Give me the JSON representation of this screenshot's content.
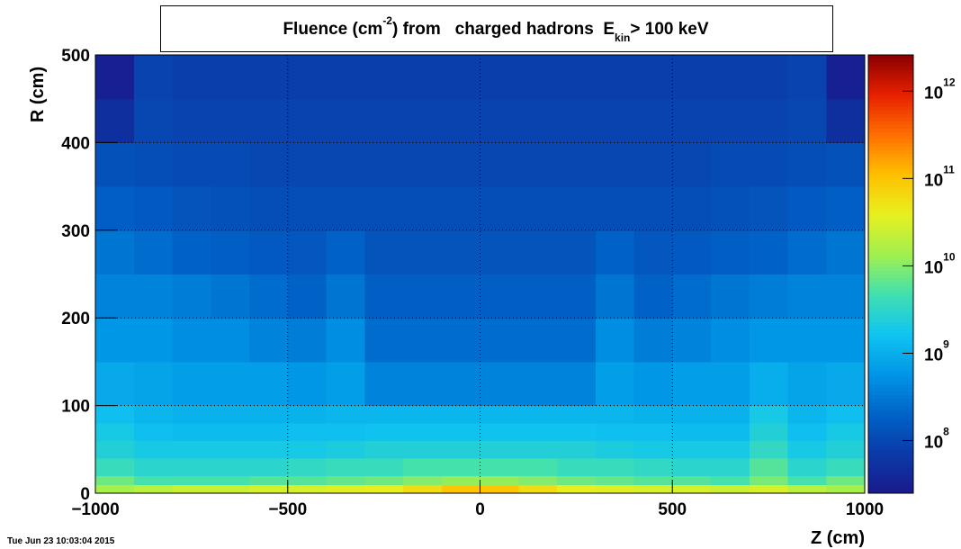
{
  "chart_data": {
    "type": "heatmap",
    "title": [
      {
        "text": "Fluence (cm"
      },
      {
        "text": "-2",
        "script": "super"
      },
      {
        "text": ") from   charged hadrons  E"
      },
      {
        "text": "kin",
        "script": "sub"
      },
      {
        "text": "> 100 keV"
      }
    ],
    "xlabel": "Z (cm)",
    "ylabel": "R (cm)",
    "timestamp": "Tue Jun 23 10:03:04 2015",
    "xlim": [
      -1000,
      1000
    ],
    "xticks": [
      {
        "value": -1000,
        "label": "−1000"
      },
      {
        "value": -500,
        "label": "−500"
      },
      0,
      500,
      1000
    ],
    "ylim": [
      0,
      500
    ],
    "yticks": [
      0,
      100,
      200,
      300,
      400,
      500
    ],
    "grid": true,
    "zlog": true,
    "zlim": [
      25000000,
      2600000000000
    ],
    "zticks": [
      {
        "value": 100000000,
        "label": "10",
        "exponent": "8"
      },
      {
        "value": 1000000000,
        "label": "10",
        "exponent": "9"
      },
      {
        "value": 10000000000,
        "label": "10",
        "exponent": "10"
      },
      {
        "value": 100000000000,
        "label": "10",
        "exponent": "11"
      },
      {
        "value": 1000000000000,
        "label": "10",
        "exponent": "12"
      }
    ],
    "palette": [
      "#1a1a8c",
      "#0a3aa8",
      "#0063c8",
      "#0096e6",
      "#10c4f0",
      "#40e0b0",
      "#a0f050",
      "#e8f020",
      "#ffc000",
      "#ff7000",
      "#e82000",
      "#8a0000"
    ],
    "xbins": [
      -1000,
      -900,
      -800,
      -700,
      -600,
      -500,
      -400,
      -300,
      -200,
      -100,
      0,
      100,
      200,
      300,
      400,
      500,
      600,
      700,
      800,
      900,
      1000
    ],
    "ybins": [
      0,
      10,
      20,
      40,
      60,
      80,
      100,
      150,
      200,
      250,
      300,
      350,
      400,
      450,
      500
    ],
    "z": [
      [
        15000000000.0,
        20000000000.0,
        25000000000.0,
        25000000000.0,
        30000000000.0,
        30000000000.0,
        35000000000.0,
        40000000000.0,
        60000000000.0,
        100000000000.0,
        100000000000.0,
        60000000000.0,
        40000000000.0,
        35000000000.0,
        30000000000.0,
        30000000000.0,
        25000000000.0,
        30000000000.0,
        20000000000.0,
        15000000000.0
      ],
      [
        8000000000.0,
        5000000000.0,
        5000000000.0,
        5000000000.0,
        6000000000.0,
        6000000000.0,
        7000000000.0,
        8000000000.0,
        10000000000.0,
        12000000000.0,
        12000000000.0,
        10000000000.0,
        8000000000.0,
        7000000000.0,
        6000000000.0,
        6000000000.0,
        5000000000.0,
        9000000000.0,
        5000000000.0,
        8000000000.0
      ],
      [
        4000000000.0,
        3000000000.0,
        3000000000.0,
        3000000000.0,
        3000000000.0,
        3500000000.0,
        4000000000.0,
        4000000000.0,
        5000000000.0,
        5000000000.0,
        5000000000.0,
        5000000000.0,
        4000000000.0,
        4000000000.0,
        3500000000.0,
        3000000000.0,
        3000000000.0,
        6000000000.0,
        3000000000.0,
        4000000000.0
      ],
      [
        2500000000.0,
        2000000000.0,
        2000000000.0,
        2000000000.0,
        2000000000.0,
        2000000000.0,
        2200000000.0,
        2500000000.0,
        2500000000.0,
        2500000000.0,
        2500000000.0,
        2500000000.0,
        2500000000.0,
        2200000000.0,
        2000000000.0,
        2000000000.0,
        2000000000.0,
        3500000000.0,
        2000000000.0,
        2500000000.0
      ],
      [
        2000000000.0,
        1500000000.0,
        1400000000.0,
        1400000000.0,
        1400000000.0,
        1500000000.0,
        1500000000.0,
        1600000000.0,
        1600000000.0,
        1600000000.0,
        1600000000.0,
        1600000000.0,
        1600000000.0,
        1500000000.0,
        1500000000.0,
        1400000000.0,
        1400000000.0,
        2500000000.0,
        1500000000.0,
        2000000000.0
      ],
      [
        1500000000.0,
        1200000000.0,
        1100000000.0,
        1100000000.0,
        1100000000.0,
        1100000000.0,
        1200000000.0,
        1200000000.0,
        1200000000.0,
        1200000000.0,
        1200000000.0,
        1200000000.0,
        1200000000.0,
        1200000000.0,
        1100000000.0,
        1100000000.0,
        1100000000.0,
        2000000000.0,
        1200000000.0,
        1500000000.0
      ],
      [
        900000000.0,
        800000000.0,
        700000000.0,
        700000000.0,
        700000000.0,
        600000000.0,
        700000000.0,
        400000000.0,
        400000000.0,
        400000000.0,
        400000000.0,
        400000000.0,
        400000000.0,
        700000000.0,
        600000000.0,
        700000000.0,
        700000000.0,
        1000000000.0,
        800000000.0,
        900000000.0
      ],
      [
        600000000.0,
        600000000.0,
        500000000.0,
        500000000.0,
        400000000.0,
        350000000.0,
        500000000.0,
        250000000.0,
        250000000.0,
        250000000.0,
        250000000.0,
        250000000.0,
        250000000.0,
        500000000.0,
        350000000.0,
        400000000.0,
        500000000.0,
        600000000.0,
        600000000.0,
        600000000.0
      ],
      [
        400000000.0,
        400000000.0,
        350000000.0,
        300000000.0,
        250000000.0,
        200000000.0,
        300000000.0,
        180000000.0,
        180000000.0,
        180000000.0,
        180000000.0,
        180000000.0,
        180000000.0,
        300000000.0,
        200000000.0,
        250000000.0,
        300000000.0,
        350000000.0,
        400000000.0,
        400000000.0
      ],
      [
        300000000.0,
        250000000.0,
        200000000.0,
        180000000.0,
        160000000.0,
        150000000.0,
        200000000.0,
        140000000.0,
        140000000.0,
        140000000.0,
        140000000.0,
        140000000.0,
        140000000.0,
        200000000.0,
        150000000.0,
        160000000.0,
        180000000.0,
        200000000.0,
        250000000.0,
        300000000.0
      ],
      [
        180000000.0,
        160000000.0,
        140000000.0,
        130000000.0,
        120000000.0,
        120000000.0,
        120000000.0,
        120000000.0,
        120000000.0,
        120000000.0,
        120000000.0,
        120000000.0,
        120000000.0,
        120000000.0,
        120000000.0,
        120000000.0,
        130000000.0,
        140000000.0,
        160000000.0,
        180000000.0
      ],
      [
        130000000.0,
        120000000.0,
        110000000.0,
        110000000.0,
        100000000.0,
        100000000.0,
        100000000.0,
        100000000.0,
        100000000.0,
        100000000.0,
        100000000.0,
        100000000.0,
        100000000.0,
        100000000.0,
        100000000.0,
        100000000.0,
        110000000.0,
        110000000.0,
        120000000.0,
        130000000.0
      ],
      [
        50000000.0,
        100000000.0,
        90000000.0,
        90000000.0,
        90000000.0,
        90000000.0,
        90000000.0,
        90000000.0,
        90000000.0,
        90000000.0,
        90000000.0,
        90000000.0,
        90000000.0,
        90000000.0,
        90000000.0,
        90000000.0,
        90000000.0,
        90000000.0,
        100000000.0,
        50000000.0
      ],
      [
        30000000.0,
        90000000.0,
        80000000.0,
        80000000.0,
        80000000.0,
        80000000.0,
        80000000.0,
        80000000.0,
        80000000.0,
        80000000.0,
        80000000.0,
        80000000.0,
        80000000.0,
        80000000.0,
        80000000.0,
        80000000.0,
        80000000.0,
        80000000.0,
        90000000.0,
        30000000.0
      ]
    ]
  }
}
